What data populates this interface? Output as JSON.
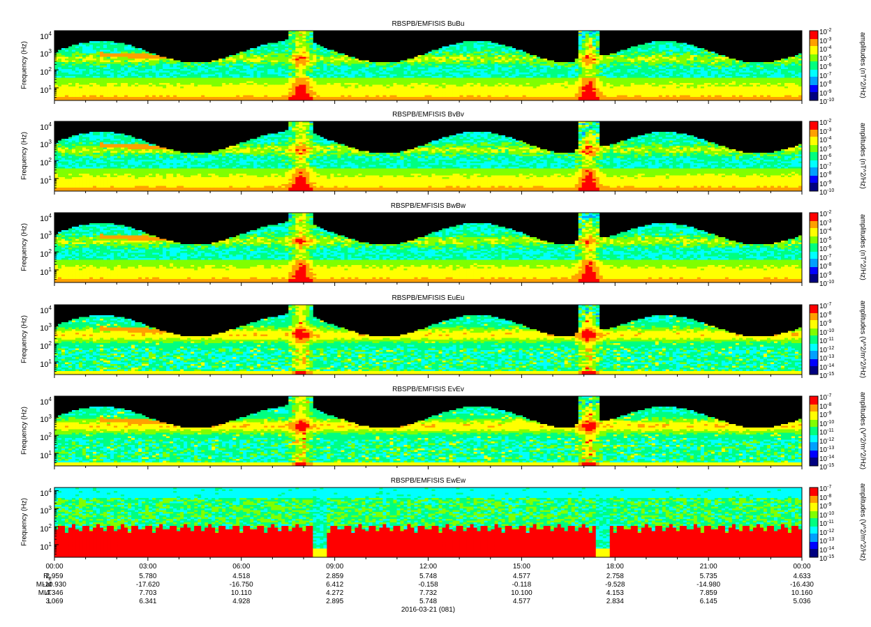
{
  "chart_data": {
    "type": "heatmap",
    "panels": [
      {
        "title": "RBSPB/EMFISIS  BuBu",
        "ylabel": "Frequency (Hz)",
        "cblabel": "amplitudes (nT^2/Hz)",
        "cb_exps": [
          "-2",
          "-3",
          "-4",
          "-5",
          "-6",
          "-7",
          "-8",
          "-9",
          "-10"
        ],
        "kind": "B"
      },
      {
        "title": "RBSPB/EMFISIS  BvBv",
        "ylabel": "Frequency (Hz)",
        "cblabel": "amplitudes (nT^2/Hz)",
        "cb_exps": [
          "-2",
          "-3",
          "-4",
          "-5",
          "-6",
          "-7",
          "-8",
          "-9",
          "-10"
        ],
        "kind": "B"
      },
      {
        "title": "RBSPB/EMFISIS  BwBw",
        "ylabel": "Frequency (Hz)",
        "cblabel": "amplitudes (nT^2/Hz)",
        "cb_exps": [
          "-2",
          "-3",
          "-4",
          "-5",
          "-6",
          "-7",
          "-8",
          "-9",
          "-10"
        ],
        "kind": "B"
      },
      {
        "title": "RBSPB/EMFISIS  EuEu",
        "ylabel": "Frequency (Hz)",
        "cblabel": "amplitudes (V^2/m^2/Hz)",
        "cb_exps": [
          "-7",
          "-8",
          "-9",
          "-10",
          "-11",
          "-12",
          "-13",
          "-14",
          "-15"
        ],
        "kind": "E"
      },
      {
        "title": "RBSPB/EMFISIS  EvEv",
        "ylabel": "Frequency (Hz)",
        "cblabel": "amplitudes (V^2/m^2/Hz)",
        "cb_exps": [
          "-7",
          "-8",
          "-9",
          "-10",
          "-11",
          "-12",
          "-13",
          "-14",
          "-15"
        ],
        "kind": "E"
      },
      {
        "title": "RBSPB/EMFISIS  EwEw",
        "ylabel": "Frequency (Hz)",
        "cblabel": "amplitudes (V^2/m^2/Hz)",
        "cb_exps": [
          "-7",
          "-8",
          "-9",
          "-10",
          "-11",
          "-12",
          "-13",
          "-14",
          "-15"
        ],
        "kind": "Ew"
      }
    ],
    "y_tick_exps": [
      "4",
      "3",
      "2",
      "1"
    ],
    "y_scale": "log",
    "ylim_hz": [
      2,
      15000
    ],
    "x_ticks": [
      "00:00",
      "03:00",
      "06:00",
      "09:00",
      "12:00",
      "15:00",
      "18:00",
      "21:00",
      "00:00"
    ],
    "xlabel": "2016-03-21 (081)",
    "ephemeris": {
      "labels": [
        "R_E",
        "MLat",
        "MLT",
        "L"
      ],
      "rows": [
        [
          "2.959",
          "5.780",
          "4.518",
          "2.859",
          "5.748",
          "4.577",
          "2.758",
          "5.735",
          "4.633"
        ],
        [
          "-10.930",
          "-17.620",
          "-16.750",
          "6.412",
          "-0.158",
          "-0.118",
          "-9.528",
          "-14.980",
          "-16.430"
        ],
        [
          "4.346",
          "7.703",
          "10.110",
          "4.272",
          "7.732",
          "10.100",
          "4.153",
          "7.859",
          "10.160"
        ],
        [
          "3.069",
          "6.341",
          "4.928",
          "2.895",
          "5.748",
          "4.577",
          "2.834",
          "6.145",
          "5.036"
        ]
      ]
    },
    "colorscale": [
      "#000080",
      "#0000ff",
      "#00a0ff",
      "#00ffff",
      "#00ff80",
      "#80ff00",
      "#ffff00",
      "#ffa000",
      "#ff0000"
    ]
  }
}
